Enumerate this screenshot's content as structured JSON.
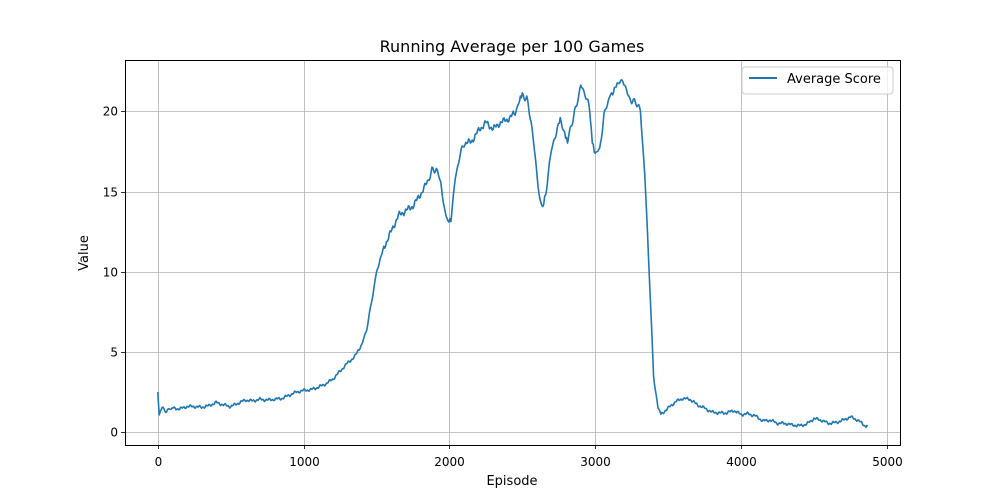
{
  "chart_data": {
    "type": "line",
    "title": "Running Average per 100 Games",
    "xlabel": "Episode",
    "ylabel": "Value",
    "xlim": [
      -225,
      5090
    ],
    "ylim": [
      -0.8,
      23.2
    ],
    "xticks": [
      0,
      1000,
      2000,
      3000,
      4000,
      5000
    ],
    "yticks": [
      0,
      5,
      10,
      15,
      20
    ],
    "grid": true,
    "legend_position": "top-right",
    "series": [
      {
        "name": "Average Score",
        "color": "#1f77b4",
        "points": [
          [
            0,
            2.5
          ],
          [
            10,
            1.1
          ],
          [
            30,
            1.5
          ],
          [
            60,
            1.3
          ],
          [
            100,
            1.5
          ],
          [
            150,
            1.45
          ],
          [
            200,
            1.6
          ],
          [
            250,
            1.6
          ],
          [
            300,
            1.55
          ],
          [
            350,
            1.65
          ],
          [
            400,
            1.85
          ],
          [
            450,
            1.7
          ],
          [
            500,
            1.6
          ],
          [
            550,
            1.8
          ],
          [
            600,
            2.0
          ],
          [
            650,
            1.95
          ],
          [
            700,
            2.05
          ],
          [
            750,
            2.0
          ],
          [
            800,
            2.05
          ],
          [
            850,
            2.1
          ],
          [
            900,
            2.3
          ],
          [
            950,
            2.5
          ],
          [
            1000,
            2.6
          ],
          [
            1050,
            2.65
          ],
          [
            1100,
            2.8
          ],
          [
            1150,
            3.0
          ],
          [
            1200,
            3.3
          ],
          [
            1250,
            3.8
          ],
          [
            1300,
            4.3
          ],
          [
            1350,
            4.7
          ],
          [
            1400,
            5.5
          ],
          [
            1430,
            6.3
          ],
          [
            1460,
            7.8
          ],
          [
            1500,
            10.0
          ],
          [
            1550,
            11.5
          ],
          [
            1600,
            12.5
          ],
          [
            1650,
            13.5
          ],
          [
            1700,
            13.8
          ],
          [
            1750,
            14.1
          ],
          [
            1800,
            14.8
          ],
          [
            1850,
            15.6
          ],
          [
            1880,
            16.3
          ],
          [
            1910,
            16.4
          ],
          [
            1940,
            15.6
          ],
          [
            1970,
            13.6
          ],
          [
            1990,
            13.1
          ],
          [
            2010,
            13.3
          ],
          [
            2040,
            15.8
          ],
          [
            2070,
            17.2
          ],
          [
            2100,
            18.0
          ],
          [
            2150,
            18.1
          ],
          [
            2200,
            18.8
          ],
          [
            2250,
            19.3
          ],
          [
            2300,
            18.9
          ],
          [
            2350,
            19.3
          ],
          [
            2400,
            19.5
          ],
          [
            2450,
            19.9
          ],
          [
            2480,
            20.6
          ],
          [
            2500,
            21.0
          ],
          [
            2530,
            20.8
          ],
          [
            2560,
            19.4
          ],
          [
            2590,
            17.0
          ],
          [
            2620,
            14.4
          ],
          [
            2640,
            13.9
          ],
          [
            2660,
            14.9
          ],
          [
            2700,
            17.6
          ],
          [
            2740,
            19.0
          ],
          [
            2760,
            19.4
          ],
          [
            2790,
            18.7
          ],
          [
            2810,
            18.1
          ],
          [
            2840,
            19.3
          ],
          [
            2870,
            20.3
          ],
          [
            2900,
            21.6
          ],
          [
            2930,
            21.1
          ],
          [
            2960,
            20.2
          ],
          [
            2980,
            18.2
          ],
          [
            3000,
            17.4
          ],
          [
            3030,
            17.6
          ],
          [
            3060,
            19.7
          ],
          [
            3100,
            21.0
          ],
          [
            3150,
            21.6
          ],
          [
            3190,
            22.0
          ],
          [
            3220,
            21.1
          ],
          [
            3250,
            20.6
          ],
          [
            3280,
            20.6
          ],
          [
            3310,
            20.0
          ],
          [
            3340,
            16.0
          ],
          [
            3370,
            10.0
          ],
          [
            3400,
            3.5
          ],
          [
            3430,
            1.5
          ],
          [
            3450,
            1.1
          ],
          [
            3500,
            1.5
          ],
          [
            3550,
            1.9
          ],
          [
            3600,
            2.1
          ],
          [
            3650,
            2.05
          ],
          [
            3700,
            1.7
          ],
          [
            3750,
            1.5
          ],
          [
            3800,
            1.25
          ],
          [
            3850,
            1.2
          ],
          [
            3900,
            1.2
          ],
          [
            3950,
            1.35
          ],
          [
            4000,
            1.1
          ],
          [
            4050,
            1.15
          ],
          [
            4100,
            1.0
          ],
          [
            4150,
            0.7
          ],
          [
            4200,
            0.75
          ],
          [
            4250,
            0.55
          ],
          [
            4300,
            0.55
          ],
          [
            4350,
            0.45
          ],
          [
            4400,
            0.4
          ],
          [
            4450,
            0.5
          ],
          [
            4500,
            0.85
          ],
          [
            4550,
            0.75
          ],
          [
            4600,
            0.55
          ],
          [
            4650,
            0.6
          ],
          [
            4700,
            0.75
          ],
          [
            4750,
            0.95
          ],
          [
            4800,
            0.75
          ],
          [
            4850,
            0.4
          ],
          [
            4870,
            0.4
          ]
        ]
      }
    ]
  }
}
